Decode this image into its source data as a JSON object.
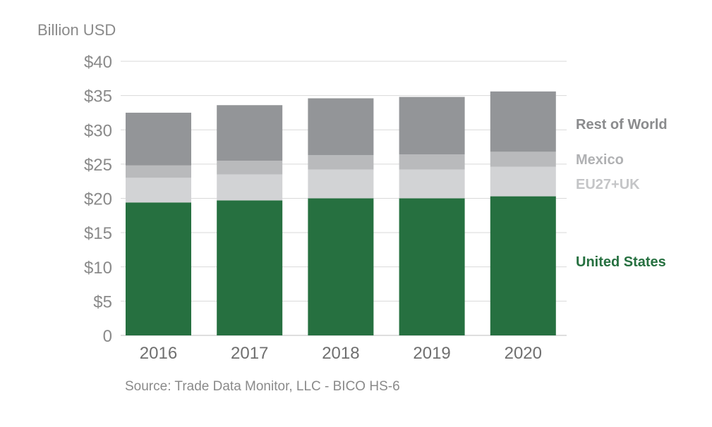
{
  "chart_data": {
    "type": "bar",
    "stacked": true,
    "ylabel": "Billion USD",
    "xlabel": "",
    "ylim": [
      0,
      40
    ],
    "ytick_values": [
      0,
      5,
      10,
      15,
      20,
      25,
      30,
      35,
      40
    ],
    "ytick_labels": [
      "0",
      "$5",
      "$10",
      "$15",
      "$20",
      "$25",
      "$30",
      "$35",
      "$40"
    ],
    "categories": [
      "2016",
      "2017",
      "2018",
      "2019",
      "2020"
    ],
    "grid": true,
    "legend": "right (labels beside last bar)",
    "series": [
      {
        "name": "United States",
        "color": "#267040",
        "values": [
          19.4,
          19.7,
          20.0,
          20.0,
          20.3
        ]
      },
      {
        "name": "EU27+UK",
        "color": "#d2d3d5",
        "values": [
          3.6,
          3.8,
          4.2,
          4.2,
          4.3
        ]
      },
      {
        "name": "Mexico",
        "color": "#b9babc",
        "values": [
          1.8,
          2.0,
          2.1,
          2.2,
          2.2
        ]
      },
      {
        "name": "Rest of World",
        "color": "#939598",
        "values": [
          7.7,
          8.1,
          8.3,
          8.4,
          8.8
        ]
      }
    ],
    "label_colors": {
      "United States": "#267040",
      "EU27+UK": "#c4c5c7",
      "Mexico": "#b0b1b3",
      "Rest of World": "#8a8b8d"
    },
    "source": "Source: Trade Data Monitor, LLC - BICO HS-6"
  }
}
